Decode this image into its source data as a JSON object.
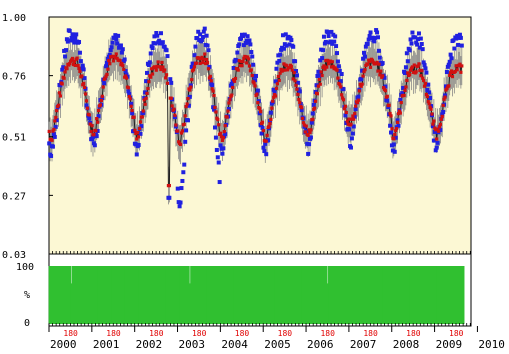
{
  "chart_data": [
    {
      "type": "scatter",
      "panel": "top",
      "title": "",
      "xlabel": "",
      "ylabel": "",
      "xlim": [
        2000.0,
        2009.85
      ],
      "ylim": [
        0.03,
        1.0
      ],
      "y_tick_labels": [
        "1.00",
        "0.76",
        "0.51",
        "0.27",
        "0.03"
      ],
      "y_ticks": [
        1.0,
        0.76,
        0.51,
        0.27,
        0.03
      ],
      "grid": false,
      "background": "#fcf8d4",
      "season_model": {
        "note": "per-year approximate cycle; summer plateau ~0.80 (red), ~0.88 (blue); winter trough ~0.50 (red), ~0.45 (blue)",
        "years": [
          2000,
          2001,
          2002,
          2003,
          2004,
          2005,
          2006,
          2007,
          2008,
          2009
        ],
        "red_high": [
          0.82,
          0.84,
          0.8,
          0.83,
          0.82,
          0.79,
          0.81,
          0.81,
          0.79,
          0.79
        ],
        "red_low": [
          0.5,
          0.52,
          0.5,
          0.48,
          0.51,
          0.5,
          0.51,
          0.56,
          0.51,
          0.52
        ],
        "blue_high": [
          0.92,
          0.9,
          0.92,
          0.93,
          0.91,
          0.9,
          0.92,
          0.92,
          0.91,
          0.9
        ],
        "blue_low": [
          0.43,
          0.46,
          0.44,
          0.22,
          0.45,
          0.45,
          0.46,
          0.47,
          0.45,
          0.46
        ],
        "dip": {
          "x": 2002.8,
          "red": 0.31,
          "blue": 0.26
        }
      },
      "series": [
        {
          "color": "#2020e0",
          "marker": "square"
        },
        {
          "color": "#d01010",
          "marker": "square",
          "error_bars": true,
          "line": true
        }
      ]
    },
    {
      "type": "bar",
      "panel": "bottom",
      "ylabel": "%",
      "ylim": [
        0,
        100
      ],
      "y_tick_labels": [
        "100",
        "%",
        "0"
      ],
      "bar_color": "#30c030",
      "bars_per_year": 46,
      "value": 100,
      "gaps": [
        2000.52,
        2003.28,
        2006.5,
        2009.72
      ],
      "doy_label": "180",
      "x_tick_labels": [
        "2000",
        "2001",
        "2002",
        "2003",
        "2004",
        "2005",
        "2006",
        "2007",
        "2008",
        "2009",
        "2010"
      ]
    }
  ]
}
